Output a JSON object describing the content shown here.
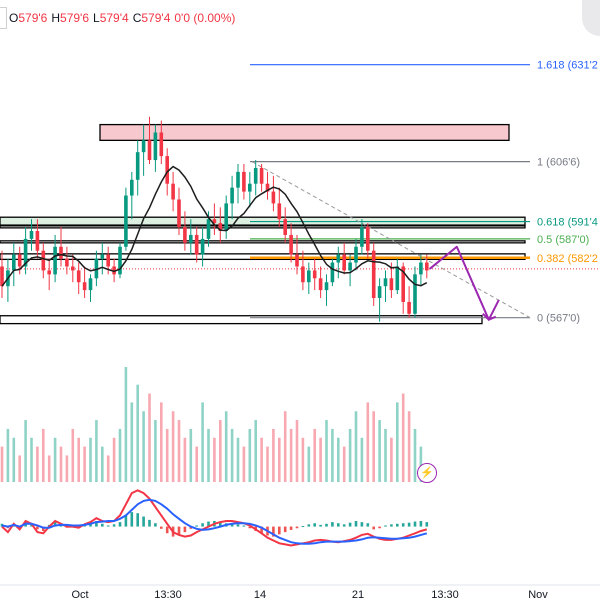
{
  "legend": {
    "o_label": "O",
    "o": "579'6",
    "h_label": "H",
    "h": "579'6",
    "l_label": "L",
    "l": "579'4",
    "c_label": "C",
    "c": "579'4",
    "chg": "0'0 (0.00%)"
  },
  "colors": {
    "up": "#089981",
    "down": "#f23645",
    "ma": "#1e1e1e",
    "fib_ext": "#2962ff",
    "fib_618": "#089981",
    "fib_5": "#4caf50",
    "fib_382": "#ff9800",
    "fib_level": "#787b86",
    "zone_red": "#f7c8cd",
    "zone_green": "#dcefe1",
    "arrow": "#9c27b0",
    "macd": "#2962ff",
    "signal": "#f23645"
  },
  "fib_labels": [
    "1.618 (631'2",
    "1 (606'6)",
    "0.618 (591'4",
    "0.5 (587'0)",
    "0.382 (582'2",
    "0 (567'0)"
  ],
  "x_labels": [
    "Oct",
    "13:30",
    "14",
    "21",
    "13:30",
    "Nov"
  ],
  "chart_data": {
    "type": "candlestick",
    "price_range": [
      555,
      640
    ],
    "ma_period": 9,
    "candles": [
      [
        580,
        584,
        572,
        575
      ],
      [
        575,
        582,
        571,
        579
      ],
      [
        579,
        586,
        575,
        583
      ],
      [
        583,
        585,
        578,
        580
      ],
      [
        580,
        590,
        578,
        587
      ],
      [
        587,
        592,
        584,
        589
      ],
      [
        589,
        592,
        582,
        584
      ],
      [
        584,
        586,
        577,
        579
      ],
      [
        579,
        582,
        574,
        578
      ],
      [
        578,
        588,
        576,
        585
      ],
      [
        585,
        590,
        580,
        582
      ],
      [
        582,
        585,
        578,
        580
      ],
      [
        580,
        583,
        576,
        579
      ],
      [
        579,
        581,
        573,
        576
      ],
      [
        576,
        580,
        572,
        574
      ],
      [
        574,
        578,
        571,
        577
      ],
      [
        577,
        584,
        575,
        582
      ],
      [
        582,
        586,
        578,
        583
      ],
      [
        583,
        585,
        578,
        580
      ],
      [
        580,
        582,
        576,
        578
      ],
      [
        578,
        586,
        577,
        585
      ],
      [
        585,
        600,
        584,
        598
      ],
      [
        598,
        604,
        592,
        602
      ],
      [
        602,
        612,
        598,
        609
      ],
      [
        609,
        616,
        603,
        612
      ],
      [
        612,
        618,
        606,
        607
      ],
      [
        607,
        616,
        604,
        614
      ],
      [
        614,
        617,
        606,
        608
      ],
      [
        608,
        610,
        598,
        601
      ],
      [
        601,
        604,
        594,
        597
      ],
      [
        597,
        600,
        588,
        590
      ],
      [
        590,
        594,
        584,
        586
      ],
      [
        586,
        592,
        583,
        588
      ],
      [
        588,
        590,
        581,
        583
      ],
      [
        583,
        590,
        580,
        587
      ],
      [
        587,
        594,
        585,
        592
      ],
      [
        592,
        596,
        588,
        591
      ],
      [
        591,
        595,
        586,
        589
      ],
      [
        589,
        598,
        587,
        596
      ],
      [
        596,
        603,
        592,
        600
      ],
      [
        600,
        606,
        596,
        604
      ],
      [
        604,
        606,
        597,
        599
      ],
      [
        599,
        604,
        595,
        601
      ],
      [
        601,
        607,
        598,
        605
      ],
      [
        605,
        606,
        599,
        601
      ],
      [
        601,
        604,
        597,
        599
      ],
      [
        599,
        603,
        594,
        596
      ],
      [
        596,
        600,
        590,
        592
      ],
      [
        592,
        595,
        586,
        588
      ],
      [
        588,
        591,
        581,
        583
      ],
      [
        583,
        588,
        578,
        580
      ],
      [
        580,
        584,
        574,
        576
      ],
      [
        576,
        581,
        573,
        579
      ],
      [
        579,
        582,
        574,
        577
      ],
      [
        577,
        580,
        572,
        574
      ],
      [
        574,
        578,
        570,
        576
      ],
      [
        576,
        582,
        575,
        581
      ],
      [
        581,
        585,
        577,
        583
      ],
      [
        583,
        586,
        578,
        579
      ],
      [
        579,
        583,
        575,
        581
      ],
      [
        581,
        587,
        579,
        585
      ],
      [
        585,
        592,
        583,
        590
      ],
      [
        590,
        591,
        582,
        584
      ],
      [
        584,
        586,
        570,
        572
      ],
      [
        572,
        577,
        566,
        575
      ],
      [
        575,
        579,
        571,
        577
      ],
      [
        577,
        581,
        572,
        574
      ],
      [
        574,
        582,
        573,
        580
      ],
      [
        580,
        581,
        568,
        571
      ],
      [
        571,
        575,
        567,
        568
      ],
      [
        568,
        580,
        567,
        578
      ],
      [
        578,
        583,
        575,
        581
      ],
      [
        581,
        583,
        577,
        579
      ]
    ],
    "volume": [
      4,
      6,
      5,
      3,
      7,
      5,
      4,
      6,
      3,
      5,
      4,
      3,
      6,
      5,
      4,
      5,
      7,
      4,
      3,
      5,
      6,
      13,
      9,
      11,
      8,
      10,
      7,
      9,
      6,
      8,
      7,
      5,
      6,
      4,
      9,
      6,
      5,
      7,
      8,
      6,
      5,
      4,
      6,
      7,
      5,
      4,
      6,
      5,
      8,
      6,
      7,
      5,
      4,
      6,
      5,
      7,
      6,
      5,
      4,
      6,
      8,
      5,
      9,
      8,
      7,
      6,
      5,
      9,
      10,
      8,
      6,
      4,
      2
    ],
    "macd": {
      "hist": [
        0.5,
        -0.3,
        0.2,
        -0.4,
        0.8,
        0.6,
        -0.5,
        -0.8,
        0.3,
        0.9,
        0.4,
        -0.2,
        0.1,
        -0.1,
        0.3,
        0.6,
        1.0,
        0.5,
        0.2,
        0.4,
        0.8,
        2.0,
        2.6,
        2.4,
        1.8,
        1.2,
        0.6,
        -0.4,
        -1.2,
        -1.8,
        -1.5,
        -1.0,
        -0.4,
        0.2,
        0.6,
        0.9,
        1.0,
        0.8,
        0.6,
        0.5,
        0.4,
        0.2,
        -0.3,
        -0.8,
        -1.2,
        -1.6,
        -1.8,
        -1.4,
        -1.0,
        -0.6,
        -0.3,
        0.1,
        0.4,
        0.6,
        0.3,
        0.5,
        0.8,
        0.6,
        0.4,
        0.7,
        1.0,
        0.8,
        0.6,
        -0.5,
        -0.3,
        0.2,
        0.4,
        0.5,
        0.6,
        0.7,
        0.9,
        1.0,
        0.8
      ],
      "macd_line": [
        0,
        -1,
        0.5,
        -0.5,
        1,
        0.5,
        -1,
        -1.2,
        0,
        1,
        0.5,
        0,
        0,
        -0.2,
        0.4,
        0.8,
        1.5,
        1,
        0.8,
        1,
        2,
        4,
        6,
        6.5,
        6,
        5,
        3.5,
        2,
        0.5,
        -1,
        -1.5,
        -1.8,
        -1.6,
        -1,
        -0.5,
        0,
        0.5,
        0.8,
        1,
        1,
        0.8,
        0.6,
        0.2,
        -0.5,
        -1.2,
        -2,
        -2.5,
        -3,
        -3.2,
        -3.4,
        -3.2,
        -3,
        -2.8,
        -2.5,
        -2.4,
        -2.5,
        -2.7,
        -2.8,
        -2.6,
        -2.4,
        -2,
        -1.5,
        -1.3,
        -1.8,
        -2.2,
        -2.4,
        -2.4,
        -2.2,
        -2,
        -1.6,
        -1.2,
        -0.8,
        -0.5
      ],
      "signal_line": [
        0.2,
        0,
        0.3,
        0,
        0.5,
        0.5,
        0.2,
        -0.2,
        -0.2,
        0.2,
        0.3,
        0.3,
        0.2,
        0.2,
        0.3,
        0.5,
        0.8,
        0.9,
        1,
        1,
        1.4,
        2,
        3,
        4,
        4.6,
        4.8,
        4.6,
        4,
        3.2,
        2.2,
        1.4,
        0.6,
        0,
        -0.4,
        -0.6,
        -0.5,
        -0.3,
        0,
        0.3,
        0.5,
        0.6,
        0.6,
        0.5,
        0.2,
        -0.2,
        -0.8,
        -1.4,
        -2,
        -2.4,
        -2.8,
        -3,
        -3.1,
        -3.1,
        -3,
        -2.8,
        -2.7,
        -2.7,
        -2.7,
        -2.7,
        -2.6,
        -2.5,
        -2.3,
        -2,
        -1.9,
        -2,
        -2.1,
        -2.2,
        -2.2,
        -2.1,
        -2,
        -1.8,
        -1.5,
        -1.2
      ],
      "range": [
        -6,
        8
      ]
    },
    "fib_levels": [
      {
        "label": "1.618 (631'2",
        "price": 631.2,
        "color": "#2962ff"
      },
      {
        "label": "1 (606'6)",
        "price": 606.6,
        "color": "#787b86"
      },
      {
        "label": "0.618 (591'4",
        "price": 591.4,
        "color": "#089981"
      },
      {
        "label": "0.5 (587'0)",
        "price": 587.0,
        "color": "#4caf50"
      },
      {
        "label": "0.382 (582'2",
        "price": 582.2,
        "color": "#ff9800"
      },
      {
        "label": "0 (567'0)",
        "price": 567.0,
        "color": "#787b86"
      }
    ],
    "zones": [
      {
        "type": "resistance",
        "top": 616,
        "bottom": 612,
        "color": "#f7c8cd"
      },
      {
        "type": "green",
        "top": 592.5,
        "bottom": 590.5,
        "color": "#dcefe1"
      },
      {
        "type": "outline",
        "top": 590.3,
        "bottom": 590.3
      },
      {
        "type": "outline",
        "top": 586.5,
        "bottom": 586.5
      },
      {
        "type": "outline",
        "top": 583.2,
        "bottom": 581.8
      },
      {
        "type": "support",
        "top": 567.5,
        "bottom": 565.5
      }
    ],
    "current_price": 579.4,
    "projection": [
      [
        579.4
      ],
      [
        585
      ],
      [
        566.5
      ],
      [
        571.5
      ]
    ],
    "x_labels": [
      "Oct",
      "13:30",
      "14",
      "21",
      "13:30",
      "Nov"
    ]
  }
}
